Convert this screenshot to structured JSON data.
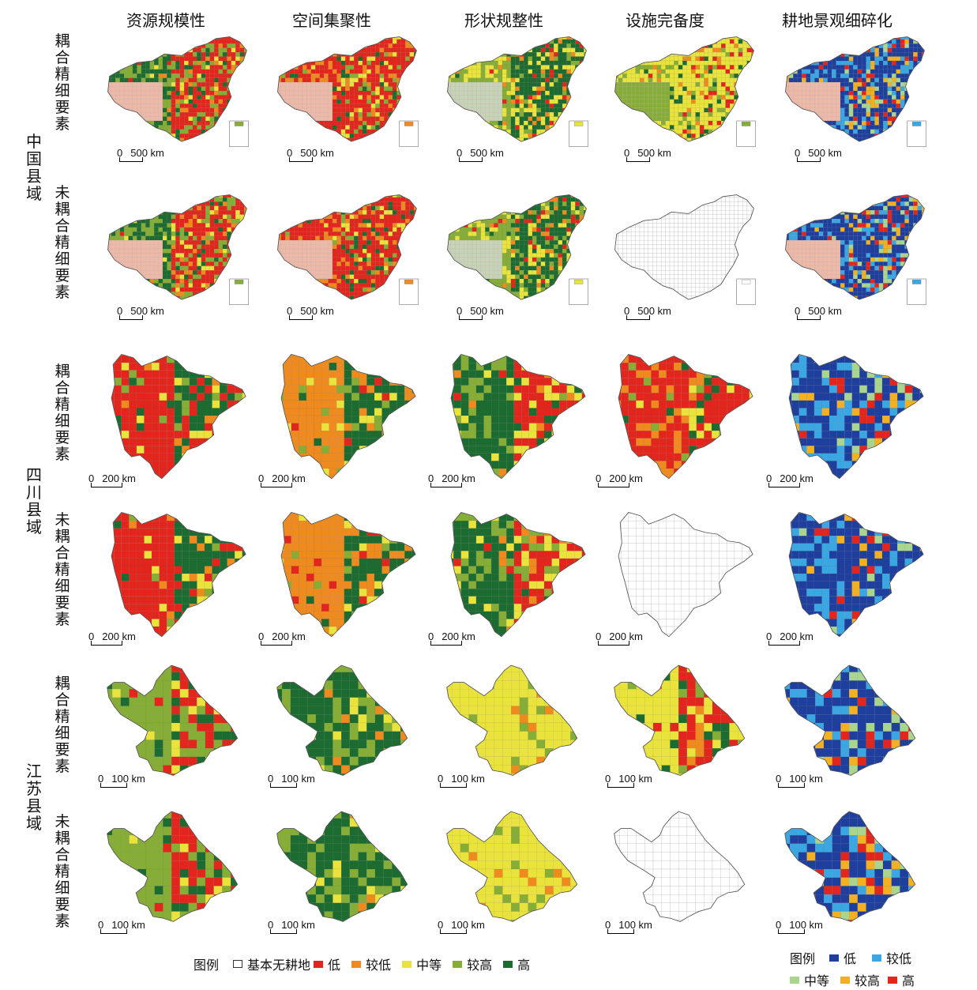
{
  "columns": [
    "资源规模性",
    "空间集聚性",
    "形状规整性",
    "设施完备度",
    "耕地景观细碎化"
  ],
  "groups": [
    {
      "label": "中国县域",
      "scale": "500 km"
    },
    {
      "label": "四川县域",
      "scale": "200 km"
    },
    {
      "label": "江苏县域",
      "scale": "100 km"
    }
  ],
  "row_labels": {
    "coupled": "耦合精细要素",
    "uncoupled": "未耦合精细要素"
  },
  "scale_zero": "0",
  "legend_main": {
    "title": "图例",
    "items": [
      "基本无耕地",
      "低",
      "较低",
      "中等",
      "较高",
      "高"
    ]
  },
  "legend_frag": {
    "title": "图例",
    "items": [
      "低",
      "较低",
      "中等",
      "较高",
      "高"
    ]
  },
  "colors": {
    "none": "#ffffff",
    "low": "#e3261d",
    "lowish": "#ef8a1e",
    "mid": "#e9e33c",
    "highish": "#86ad35",
    "high": "#1c6b31",
    "frag_low": "#1f3f9e",
    "frag_lowish": "#3aa7e3",
    "frag_mid": "#a9d58e",
    "frag_highish": "#f3b021",
    "frag_high": "#e3261d",
    "tibet_pink": "#ecb9a9",
    "tibet_sage": "#c6d3b6"
  }
}
